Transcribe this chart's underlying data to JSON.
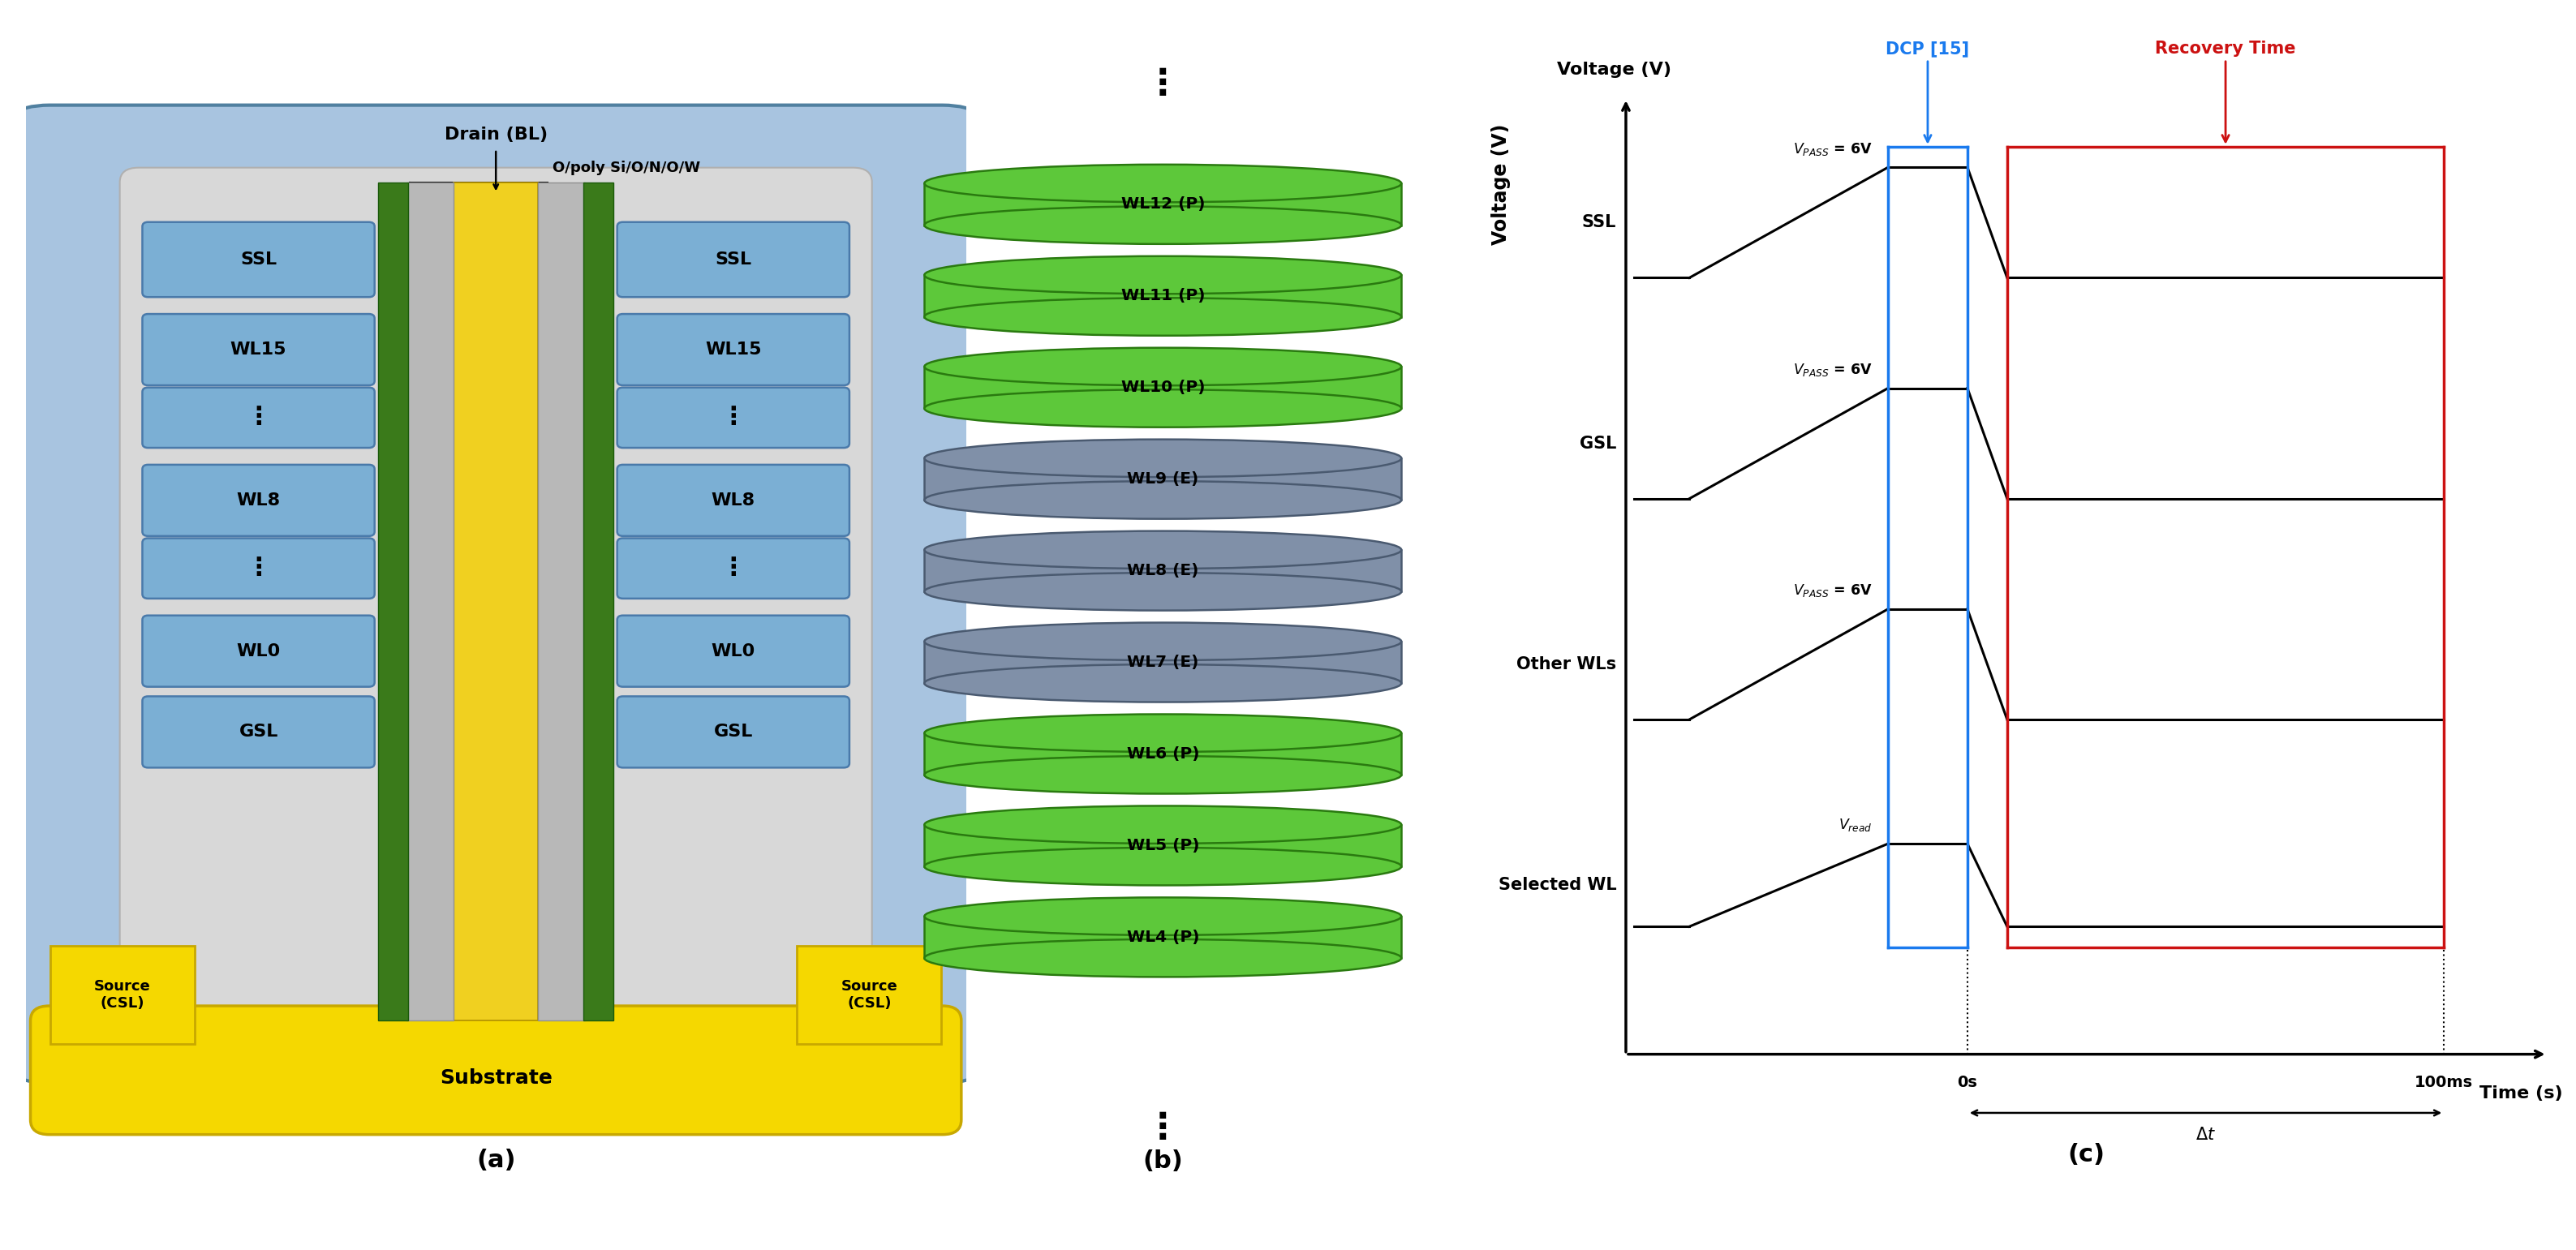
{
  "fig_width": 31.75,
  "fig_height": 15.41,
  "bg_color": "#ffffff",
  "panel_a": {
    "outer_bg": "#a8c4e0",
    "inner_bg": "#d8d8d8",
    "substrate_color": "#f5d800",
    "substrate_border": "#c8a800",
    "source_color": "#f5d800",
    "source_border": "#c8a800",
    "wl_color": "#7bafd4",
    "wl_border": "#4a7aaa",
    "wl_labels": [
      "SSL",
      "WL15",
      "⋮",
      "WL8",
      "⋮",
      "WL0",
      "GSL"
    ],
    "drain_label": "Drain (BL)",
    "opoly_label": "O/poly Si/O/N/O/W",
    "source_label": "Source\n(CSL)",
    "substrate_label": "Substrate",
    "channel_color": "#3a7a1a",
    "bitline_color": "#f0d020",
    "poly_color": "#c0c0c0"
  },
  "panel_b": {
    "wl_items": [
      {
        "label": "WL12 (P)",
        "color": "#5dc83a",
        "type": "P"
      },
      {
        "label": "WL11 (P)",
        "color": "#5dc83a",
        "type": "P"
      },
      {
        "label": "WL10 (P)",
        "color": "#5dc83a",
        "type": "P"
      },
      {
        "label": "WL9 (E)",
        "color": "#8090a8",
        "type": "E"
      },
      {
        "label": "WL8 (E)",
        "color": "#8090a8",
        "type": "E"
      },
      {
        "label": "WL7 (E)",
        "color": "#8090a8",
        "type": "E"
      },
      {
        "label": "WL6 (P)",
        "color": "#5dc83a",
        "type": "P"
      },
      {
        "label": "WL5 (P)",
        "color": "#5dc83a",
        "type": "P"
      },
      {
        "label": "WL4 (P)",
        "color": "#5dc83a",
        "type": "P"
      }
    ],
    "connector_color": "#c8c8c8",
    "connector_edge": "#909090",
    "voltage_label": "Voltage (V)"
  },
  "panel_c": {
    "dcp_label": "DCP [15]",
    "dcp_color": "#1a7aee",
    "recovery_label": "Recovery Time",
    "recovery_color": "#cc1111",
    "signal_labels": [
      "SSL",
      "GSL",
      "Other WLs",
      "Selected WL"
    ],
    "vlabels": [
      "$V_{PASS}$ = 6V",
      "$V_{PASS}$ = 6V",
      "$V_{PASS}$ = 6V",
      "$V_{read}$"
    ]
  }
}
